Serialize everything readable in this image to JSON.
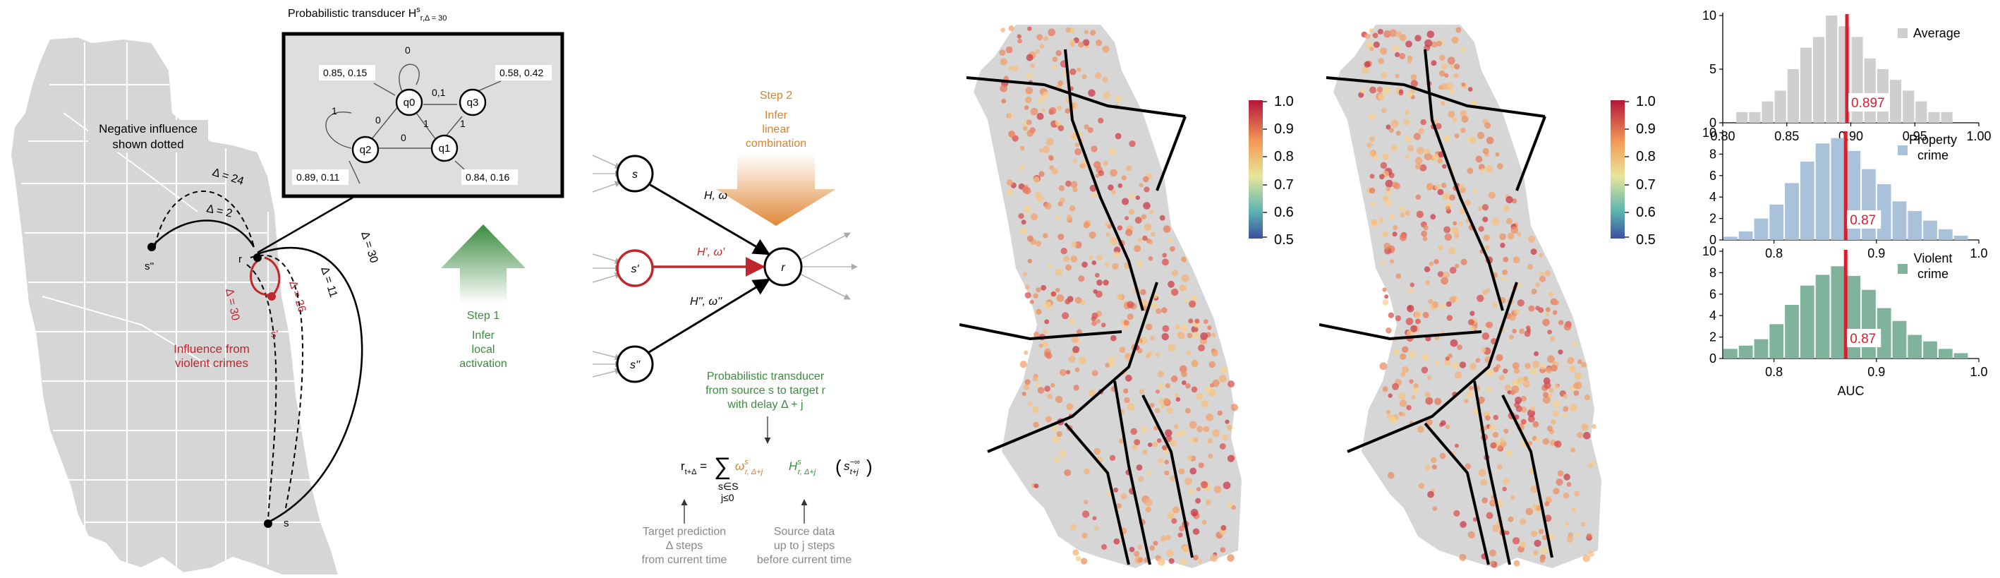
{
  "map_left": {
    "negative_label": [
      "Negative influence",
      "shown dotted"
    ],
    "influence_label": [
      "Influence from",
      "violent crimes"
    ],
    "node_labels": {
      "s2": "s''",
      "r": "r",
      "s1": "s'",
      "s": "s"
    },
    "deltas": {
      "d24": "Δ = 24",
      "d2": "Δ = 2",
      "d30a": "Δ = 30",
      "d26": "Δ = 26",
      "d11": "Δ = 11",
      "d30b": "Δ = 30"
    }
  },
  "transducer_box": {
    "title": "Probabilistic transducer H",
    "title_sup": "s",
    "title_sub": "r,Δ = 30",
    "states": [
      "q0",
      "q1",
      "q2",
      "q3"
    ],
    "probs": {
      "q0": "0.85, 0.15",
      "q3": "0.58, 0.42",
      "q2": "0.89, 0.11",
      "q1": "0.84, 0.16"
    },
    "edges": {
      "self_q0": "0",
      "self_q2": "1",
      "q0_q2": "0",
      "q3_q0": "0,1",
      "q3_q1": "1",
      "q1_q2": "0",
      "q0_q1": "1"
    }
  },
  "step1": {
    "title": "Step 1",
    "lines": [
      "Infer",
      "local",
      "activation"
    ]
  },
  "step2": {
    "title": "Step 2",
    "lines": [
      "Infer",
      "linear",
      "combination"
    ]
  },
  "network": {
    "nodes": {
      "s": "s",
      "s1": "s'",
      "s2": "s''",
      "r": "r"
    },
    "edges": {
      "e1": "H, ω",
      "e2": "H', ω'",
      "e3": "H'', ω''"
    }
  },
  "formula": {
    "annotation": [
      "Probabilistic transducer",
      "from source s to target r",
      "with delay Δ + j"
    ],
    "lhs": "r",
    "lhs_sub": "t+Δ",
    "sum_sym": "∑",
    "under": [
      "s∈S",
      "j≤0"
    ],
    "omega": "ω",
    "omega_sup": "s",
    "omega_sub": "r, Δ+j",
    "h": "H",
    "h_sup": "s",
    "h_sub": "r, Δ+j",
    "src": "s",
    "src_sup": "−∞",
    "src_sub": "t+j",
    "target_note": [
      "Target prediction",
      "Δ steps",
      "from current time"
    ],
    "source_note": [
      "Source data",
      "up to j steps",
      "before current time"
    ]
  },
  "colorbar_ticks": [
    "1.0",
    "0.9",
    "0.8",
    "0.7",
    "0.6",
    "0.5"
  ],
  "colors": {
    "neg_red": "#c0272d",
    "green": "#3a8c3f",
    "orange": "#d9822b",
    "avg_bar": "#cfcfcf",
    "prop_bar": "#a9c2d9",
    "viol_bar": "#7fb39c",
    "marker": "#d62030"
  },
  "chart_data": [
    {
      "type": "bar",
      "title": "",
      "legend": "Average",
      "xlim": [
        0.8,
        1.0
      ],
      "ylim": [
        0,
        10
      ],
      "x_ticks": [
        "0.80",
        "0.85",
        "0.90",
        "0.95",
        "1.00"
      ],
      "y_ticks": [
        "0",
        "5",
        "10"
      ],
      "bin_centers": [
        0.805,
        0.815,
        0.825,
        0.835,
        0.845,
        0.855,
        0.865,
        0.875,
        0.885,
        0.895,
        0.905,
        0.915,
        0.925,
        0.935,
        0.945,
        0.955,
        0.965,
        0.975,
        0.985,
        0.995
      ],
      "values": [
        0,
        1,
        1,
        2,
        3,
        5,
        7,
        8,
        10,
        9,
        8,
        6,
        5,
        4,
        3,
        2,
        1,
        1,
        0,
        0
      ],
      "marker": 0.897,
      "marker_label": "0.897",
      "xlabel": ""
    },
    {
      "type": "bar",
      "title": "",
      "legend": "Property crime",
      "xlim": [
        0.75,
        1.0
      ],
      "ylim": [
        0,
        10
      ],
      "x_ticks": [
        "0.8",
        "0.9",
        "1.0"
      ],
      "y_ticks": [
        "0",
        "2",
        "4",
        "6",
        "8",
        "10"
      ],
      "bin_centers": [
        0.7575,
        0.7725,
        0.7875,
        0.8025,
        0.8175,
        0.8325,
        0.8475,
        0.8625,
        0.8775,
        0.8925,
        0.9075,
        0.9225,
        0.9375,
        0.9525,
        0.9675,
        0.9825
      ],
      "values": [
        0.3,
        0.8,
        2,
        3.3,
        5.3,
        7.3,
        9,
        9.5,
        8.3,
        6.6,
        5.2,
        3.6,
        2.7,
        1.8,
        1,
        0.4
      ],
      "marker": 0.87,
      "marker_label": "0.87",
      "xlabel": ""
    },
    {
      "type": "bar",
      "title": "",
      "legend": "Violent crime",
      "xlim": [
        0.75,
        1.0
      ],
      "ylim": [
        0,
        10
      ],
      "x_ticks": [
        "0.8",
        "0.9",
        "1.0"
      ],
      "y_ticks": [
        "0",
        "2",
        "4",
        "6",
        "8",
        "10"
      ],
      "bin_centers": [
        0.7575,
        0.7725,
        0.7875,
        0.8025,
        0.8175,
        0.8325,
        0.8475,
        0.8625,
        0.8775,
        0.8925,
        0.9075,
        0.9225,
        0.9375,
        0.9525,
        0.9675,
        0.9825
      ],
      "values": [
        0.9,
        1.2,
        1.8,
        3.2,
        5,
        6.8,
        7.8,
        8.6,
        7.7,
        6.4,
        4.7,
        3.5,
        2.2,
        1.6,
        0.9,
        0.5
      ],
      "marker": 0.87,
      "marker_label": "0.87",
      "xlabel": "AUC"
    }
  ]
}
